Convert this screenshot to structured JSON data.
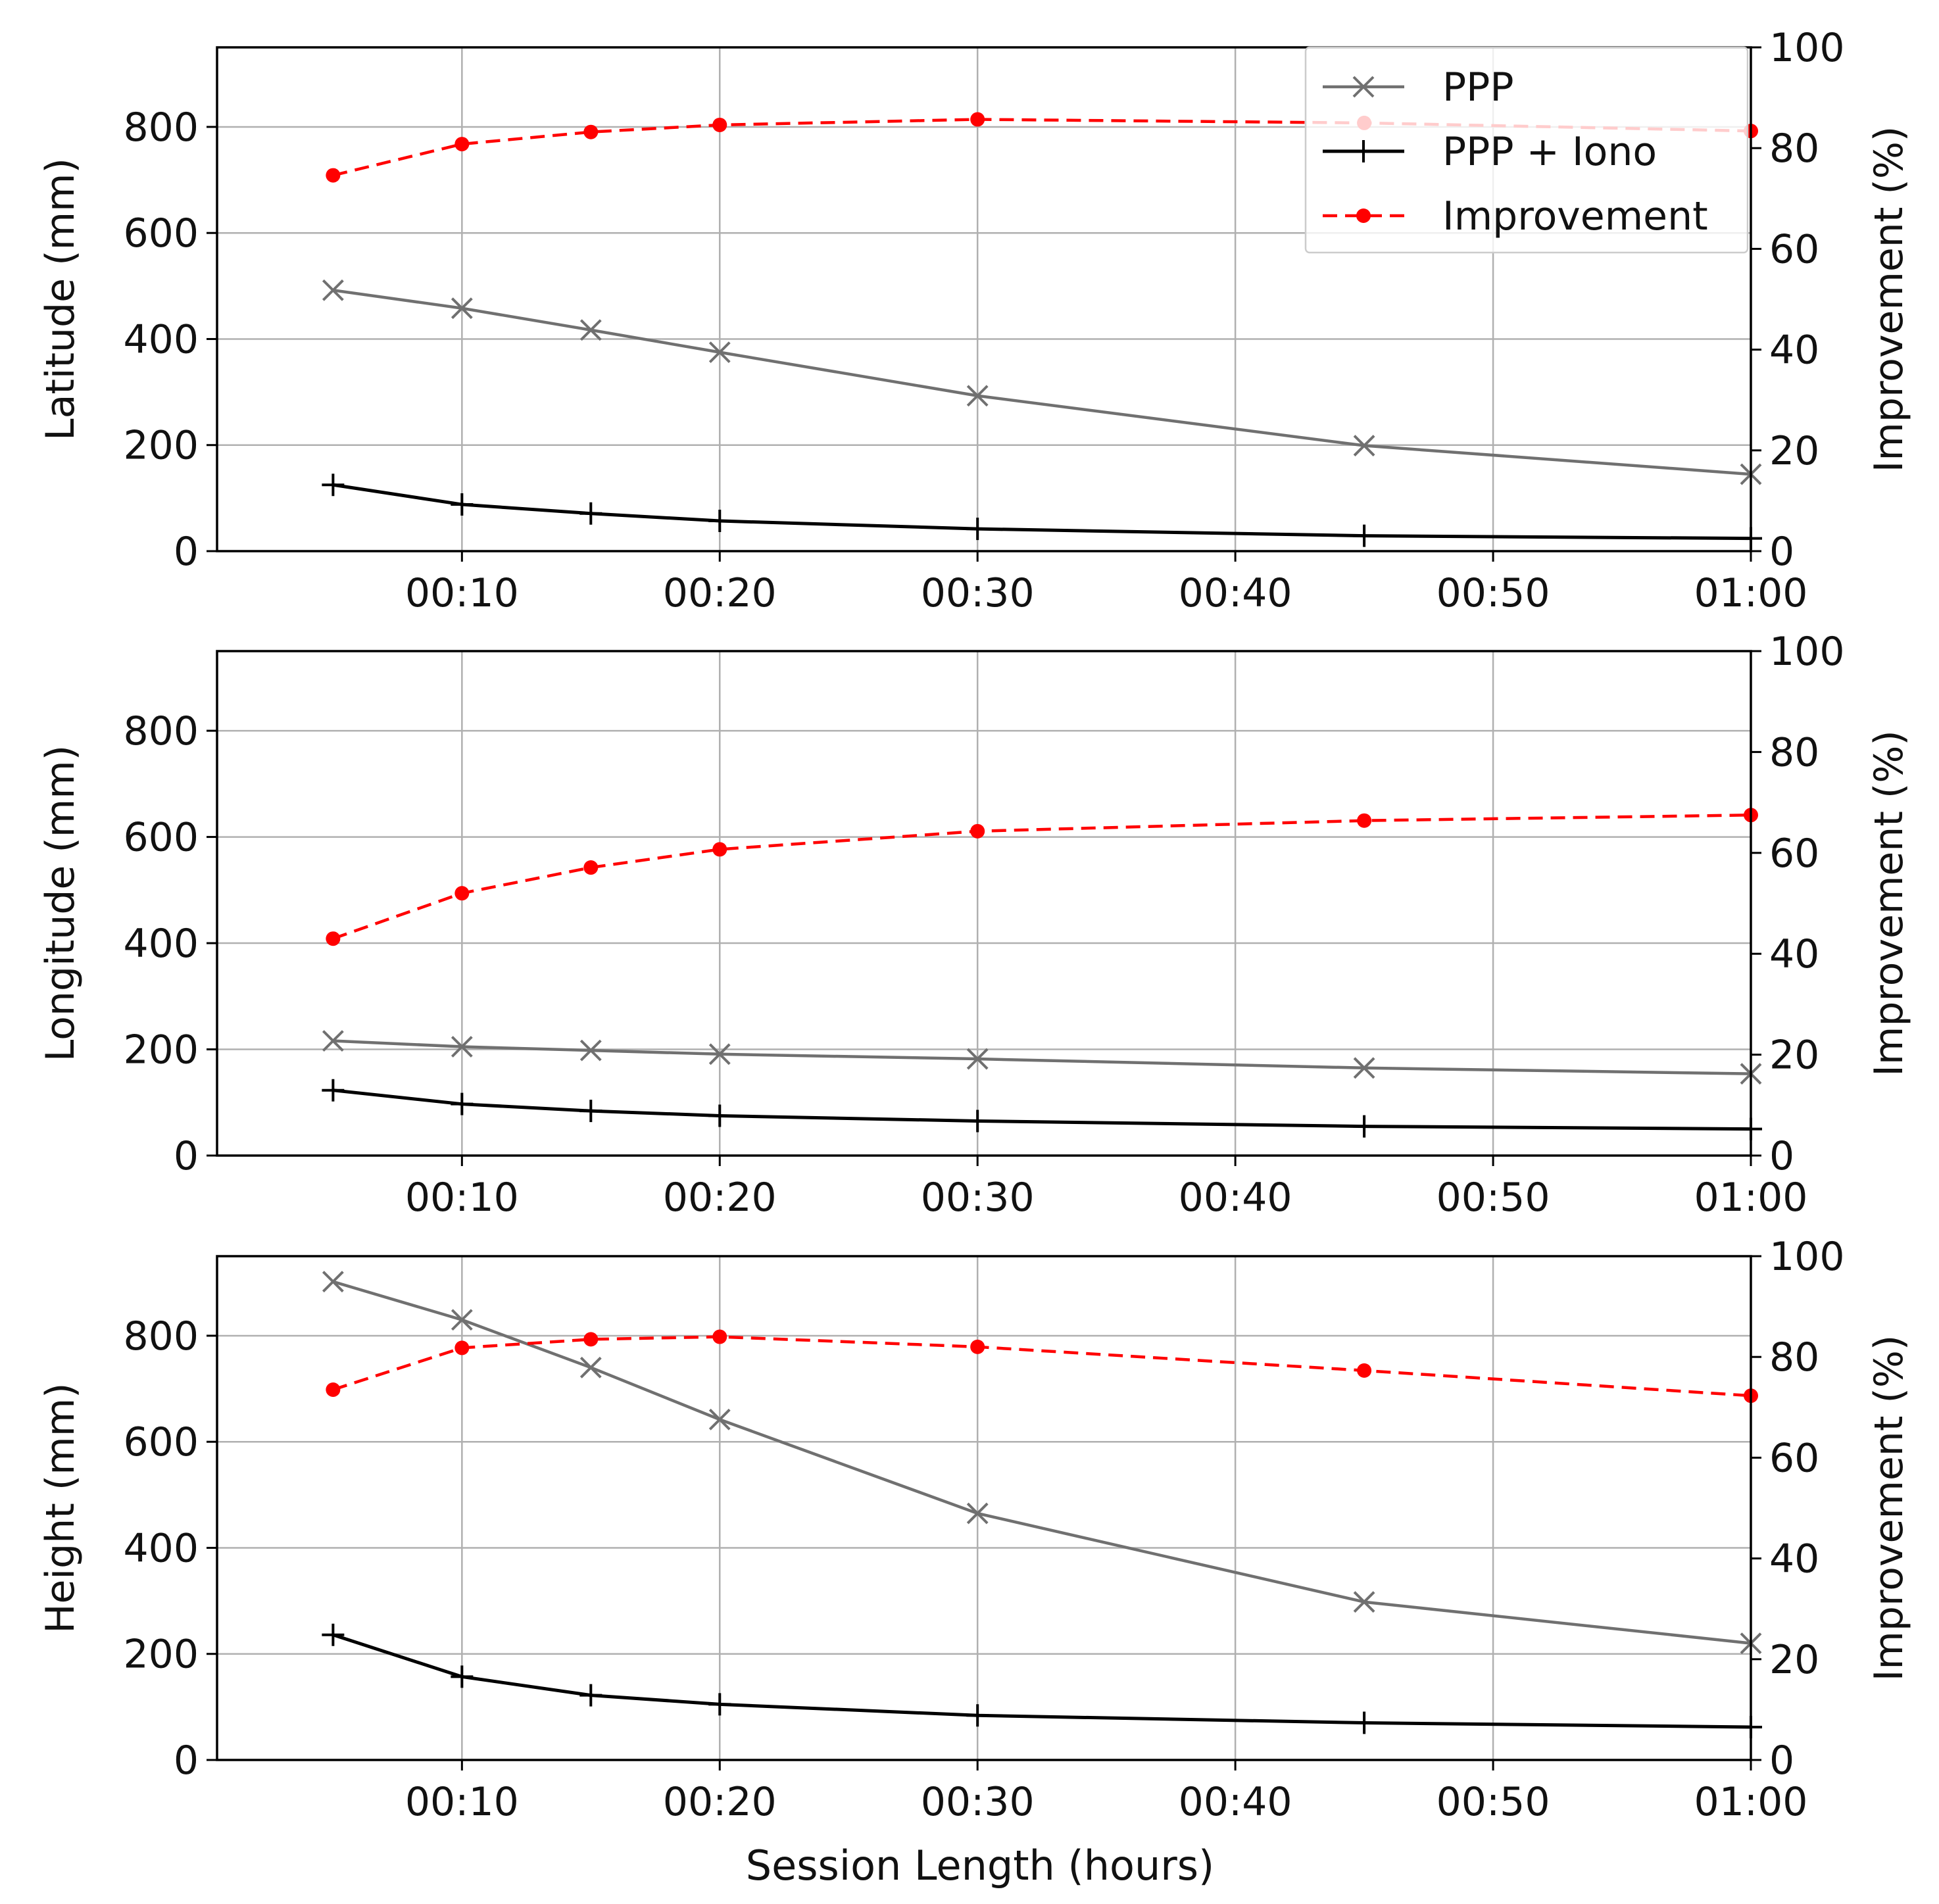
{
  "figure": {
    "xlabel": "Session Length (hours)"
  },
  "legend": {
    "location": "top-right",
    "entries": [
      {
        "label": "PPP",
        "color": "#707070",
        "marker": "x",
        "line": "solid"
      },
      {
        "label": "PPP + Iono",
        "color": "#000000",
        "marker": "+",
        "line": "solid"
      },
      {
        "label": "Improvement",
        "color": "#ff0000",
        "marker": "dot",
        "line": "dashed"
      }
    ]
  },
  "chart_data": [
    {
      "type": "line",
      "ylabel": "Latitude (mm)",
      "y2label": "Improvement (%)",
      "xlim": [
        0.5,
        60
      ],
      "ylim": [
        0,
        950
      ],
      "y2lim": [
        0,
        100
      ],
      "xticks": [
        10,
        20,
        30,
        40,
        50,
        60
      ],
      "xticklabels": [
        "00:10",
        "00:20",
        "00:30",
        "00:40",
        "00:50",
        "01:00"
      ],
      "yticks": [
        0,
        200,
        400,
        600,
        800
      ],
      "yticklabels": [
        "0",
        "200",
        "400",
        "600",
        "800"
      ],
      "y2ticks": [
        0,
        20,
        40,
        60,
        80,
        100
      ],
      "y2ticklabels": [
        "0",
        "20",
        "40",
        "60",
        "80",
        "100"
      ],
      "grid": true,
      "x": [
        5,
        10,
        15,
        20,
        30,
        45,
        60
      ],
      "series": [
        {
          "name": "PPP",
          "axis": "left",
          "values": [
            492,
            458,
            417,
            375,
            293,
            199,
            145
          ]
        },
        {
          "name": "PPP + Iono",
          "axis": "left",
          "values": [
            125,
            88,
            71,
            57,
            42,
            29,
            24
          ]
        },
        {
          "name": "Improvement",
          "axis": "right",
          "values": [
            74.6,
            80.8,
            83.2,
            84.6,
            85.7,
            85.0,
            83.4
          ]
        }
      ]
    },
    {
      "type": "line",
      "ylabel": "Longitude (mm)",
      "y2label": "Improvement (%)",
      "xlim": [
        0.5,
        60
      ],
      "ylim": [
        0,
        950
      ],
      "y2lim": [
        0,
        100
      ],
      "xticks": [
        10,
        20,
        30,
        40,
        50,
        60
      ],
      "xticklabels": [
        "00:10",
        "00:20",
        "00:30",
        "00:40",
        "00:50",
        "01:00"
      ],
      "yticks": [
        0,
        200,
        400,
        600,
        800
      ],
      "yticklabels": [
        "0",
        "200",
        "400",
        "600",
        "800"
      ],
      "y2ticks": [
        0,
        20,
        40,
        60,
        80,
        100
      ],
      "y2ticklabels": [
        "0",
        "20",
        "40",
        "60",
        "80",
        "100"
      ],
      "grid": true,
      "x": [
        5,
        10,
        15,
        20,
        30,
        45,
        60
      ],
      "series": [
        {
          "name": "PPP",
          "axis": "left",
          "values": [
            216,
            205,
            198,
            191,
            182,
            165,
            154
          ]
        },
        {
          "name": "PPP + Iono",
          "axis": "left",
          "values": [
            123,
            97,
            84,
            75,
            65,
            55,
            50
          ]
        },
        {
          "name": "Improvement",
          "axis": "right",
          "values": [
            43.0,
            52.0,
            57.1,
            60.7,
            64.3,
            66.4,
            67.5
          ]
        }
      ]
    },
    {
      "type": "line",
      "ylabel": "Height (mm)",
      "y2label": "Improvement (%)",
      "xlim": [
        0.5,
        60
      ],
      "ylim": [
        0,
        950
      ],
      "y2lim": [
        0,
        100
      ],
      "xticks": [
        10,
        20,
        30,
        40,
        50,
        60
      ],
      "xticklabels": [
        "00:10",
        "00:20",
        "00:30",
        "00:40",
        "00:50",
        "01:00"
      ],
      "yticks": [
        0,
        200,
        400,
        600,
        800
      ],
      "yticklabels": [
        "0",
        "200",
        "400",
        "600",
        "800"
      ],
      "y2ticks": [
        0,
        20,
        40,
        60,
        80,
        100
      ],
      "y2ticklabels": [
        "0",
        "20",
        "40",
        "60",
        "80",
        "100"
      ],
      "grid": true,
      "x": [
        5,
        10,
        15,
        20,
        30,
        45,
        60
      ],
      "series": [
        {
          "name": "PPP",
          "axis": "left",
          "values": [
            902,
            830,
            740,
            642,
            465,
            298,
            220
          ]
        },
        {
          "name": "PPP + Iono",
          "axis": "left",
          "values": [
            236,
            157,
            122,
            105,
            84,
            70,
            62
          ]
        },
        {
          "name": "Improvement",
          "axis": "right",
          "values": [
            73.5,
            81.8,
            83.5,
            84.0,
            82.0,
            77.3,
            72.3
          ]
        }
      ]
    }
  ]
}
